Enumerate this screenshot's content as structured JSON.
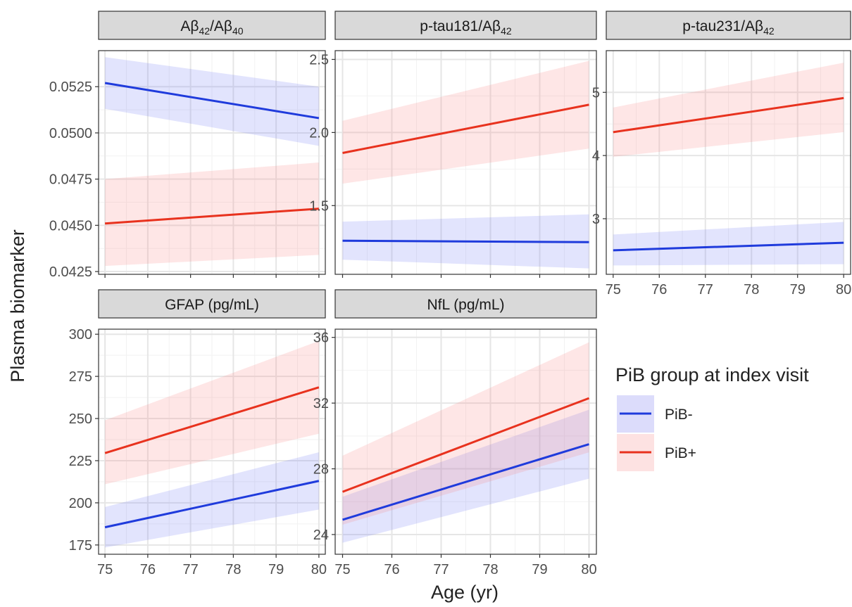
{
  "figure": {
    "ylabel": "Plasma biomarker",
    "xlabel": "Age (yr)"
  },
  "legend": {
    "title": "PiB group at index visit",
    "items": [
      {
        "label": "PiB-",
        "color": "#1f3bdc",
        "fill": "#dcdcfb"
      },
      {
        "label": "PiB+",
        "color": "#e8321e",
        "fill": "#fde2e2"
      }
    ]
  },
  "chart_data": [
    {
      "type": "line",
      "title": "Aβ42/Aβ40",
      "title_parts": [
        [
          "Aβ",
          ""
        ],
        [
          "42",
          "sub"
        ],
        [
          "/Aβ",
          ""
        ],
        [
          "40",
          "sub"
        ]
      ],
      "xlabel": "Age (yr)",
      "ylabel": "Plasma biomarker",
      "xlim": [
        74.85,
        80.15
      ],
      "ylim": [
        0.04235,
        0.05445
      ],
      "yticks": [
        0.0425,
        0.045,
        0.0475,
        0.05,
        0.0525
      ],
      "ytick_labels": [
        "0.0425",
        "0.0450",
        "0.0475",
        "0.0500",
        "0.0525"
      ],
      "xticks": [
        75,
        76,
        77,
        78,
        79,
        80
      ],
      "xtick_labels": [],
      "grid": true,
      "series": [
        {
          "name": "PiB-",
          "x": [
            75,
            80
          ],
          "y": [
            0.0527,
            0.0508
          ],
          "ci_lower": [
            0.0513,
            0.0493
          ],
          "ci_upper": [
            0.0541,
            0.0525
          ]
        },
        {
          "name": "PiB+",
          "x": [
            75,
            80
          ],
          "y": [
            0.0451,
            0.0459
          ],
          "ci_lower": [
            0.0428,
            0.0434
          ],
          "ci_upper": [
            0.0475,
            0.0484
          ]
        }
      ]
    },
    {
      "type": "line",
      "title": "p-tau181/Aβ42",
      "title_parts": [
        [
          "p-tau181/Aβ",
          ""
        ],
        [
          "42",
          "sub"
        ]
      ],
      "xlabel": "Age (yr)",
      "ylabel": "Plasma biomarker",
      "xlim": [
        74.85,
        80.15
      ],
      "ylim": [
        1.03,
        2.56
      ],
      "yticks": [
        1.5,
        2.0,
        2.5
      ],
      "ytick_labels": [
        "1.5",
        "2.0",
        "2.5"
      ],
      "xticks": [
        75,
        76,
        77,
        78,
        79,
        80
      ],
      "xtick_labels": [],
      "grid": true,
      "series": [
        {
          "name": "PiB-",
          "x": [
            75,
            80
          ],
          "y": [
            1.26,
            1.25
          ],
          "ci_lower": [
            1.13,
            1.07
          ],
          "ci_upper": [
            1.39,
            1.44
          ]
        },
        {
          "name": "PiB+",
          "x": [
            75,
            80
          ],
          "y": [
            1.86,
            2.19
          ],
          "ci_lower": [
            1.65,
            1.89
          ],
          "ci_upper": [
            2.08,
            2.49
          ]
        }
      ]
    },
    {
      "type": "line",
      "title": "p-tau231/Aβ42",
      "title_parts": [
        [
          "p-tau231/Aβ",
          ""
        ],
        [
          "42",
          "sub"
        ]
      ],
      "xlabel": "Age (yr)",
      "ylabel": "Plasma biomarker",
      "xlim": [
        74.85,
        80.15
      ],
      "ylim": [
        2.12,
        5.66
      ],
      "yticks": [
        3,
        4,
        5
      ],
      "ytick_labels": [
        "3",
        "4",
        "5"
      ],
      "xticks": [
        75,
        76,
        77,
        78,
        79,
        80
      ],
      "xtick_labels": [
        "75",
        "76",
        "77",
        "78",
        "79",
        "80"
      ],
      "grid": true,
      "series": [
        {
          "name": "PiB-",
          "x": [
            75,
            80
          ],
          "y": [
            2.5,
            2.62
          ],
          "ci_lower": [
            2.26,
            2.28
          ],
          "ci_upper": [
            2.75,
            2.95
          ]
        },
        {
          "name": "PiB+",
          "x": [
            75,
            80
          ],
          "y": [
            4.37,
            4.91
          ],
          "ci_lower": [
            3.98,
            4.37
          ],
          "ci_upper": [
            4.76,
            5.47
          ]
        }
      ]
    },
    {
      "type": "line",
      "title": "GFAP (pg/mL)",
      "title_parts": [
        [
          "GFAP (pg/mL)",
          ""
        ]
      ],
      "xlabel": "Age (yr)",
      "ylabel": "Plasma biomarker",
      "xlim": [
        74.85,
        80.15
      ],
      "ylim": [
        169.5,
        303
      ],
      "yticks": [
        175,
        200,
        225,
        250,
        275,
        300
      ],
      "ytick_labels": [
        "175",
        "200",
        "225",
        "250",
        "275",
        "300"
      ],
      "xticks": [
        75,
        76,
        77,
        78,
        79,
        80
      ],
      "xtick_labels": [
        "75",
        "76",
        "77",
        "78",
        "79",
        "80"
      ],
      "grid": true,
      "series": [
        {
          "name": "PiB-",
          "x": [
            75,
            80
          ],
          "y": [
            185.5,
            213
          ],
          "ci_lower": [
            173.5,
            196
          ],
          "ci_upper": [
            197.5,
            230
          ]
        },
        {
          "name": "PiB+",
          "x": [
            75,
            80
          ],
          "y": [
            229.5,
            268.5
          ],
          "ci_lower": [
            211,
            241
          ],
          "ci_upper": [
            249,
            296
          ]
        }
      ]
    },
    {
      "type": "line",
      "title": "NfL (pg/mL)",
      "title_parts": [
        [
          "NfL (pg/mL)",
          ""
        ]
      ],
      "xlabel": "Age (yr)",
      "ylabel": "Plasma biomarker",
      "xlim": [
        74.85,
        80.15
      ],
      "ylim": [
        22.8,
        36.5
      ],
      "yticks": [
        24,
        28,
        32,
        36
      ],
      "ytick_labels": [
        "24",
        "28",
        "32",
        "36"
      ],
      "xticks": [
        75,
        76,
        77,
        78,
        79,
        80
      ],
      "xtick_labels": [
        "75",
        "76",
        "77",
        "78",
        "79",
        "80"
      ],
      "grid": true,
      "series": [
        {
          "name": "PiB-",
          "x": [
            75,
            80
          ],
          "y": [
            24.9,
            29.5
          ],
          "ci_lower": [
            23.5,
            27.4
          ],
          "ci_upper": [
            26.3,
            31.6
          ]
        },
        {
          "name": "PiB+",
          "x": [
            75,
            80
          ],
          "y": [
            26.6,
            32.3
          ],
          "ci_lower": [
            24.6,
            29
          ],
          "ci_upper": [
            28.8,
            35.7
          ]
        }
      ]
    }
  ]
}
